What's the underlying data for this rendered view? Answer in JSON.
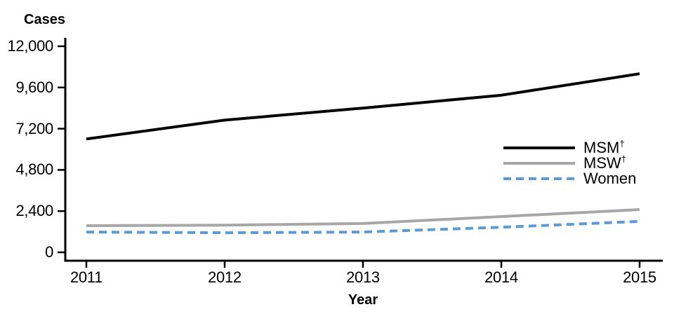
{
  "chart_data": {
    "type": "line",
    "title": "",
    "ylabel": "Cases",
    "xlabel": "Year",
    "x": [
      2011,
      2012,
      2013,
      2014,
      2015
    ],
    "series": [
      {
        "name": "MSM",
        "sup": "†",
        "values": [
          6600,
          7700,
          8400,
          9150,
          10400
        ],
        "color": "#000000",
        "style": "solid"
      },
      {
        "name": "MSW",
        "sup": "†",
        "values": [
          1550,
          1580,
          1680,
          2080,
          2490
        ],
        "color": "#A7A7A7",
        "style": "solid"
      },
      {
        "name": "Women",
        "sup": "",
        "values": [
          1180,
          1140,
          1180,
          1460,
          1800
        ],
        "color": "#5B9BD5",
        "style": "dashed"
      }
    ],
    "ylim": [
      0,
      12000
    ],
    "yticks": [
      0,
      2400,
      4800,
      7200,
      9600,
      12000
    ],
    "grid": false,
    "legend_position": "right",
    "axis_color": "#000000",
    "text_color": "#000000",
    "background_color": "#FFFFFF"
  }
}
